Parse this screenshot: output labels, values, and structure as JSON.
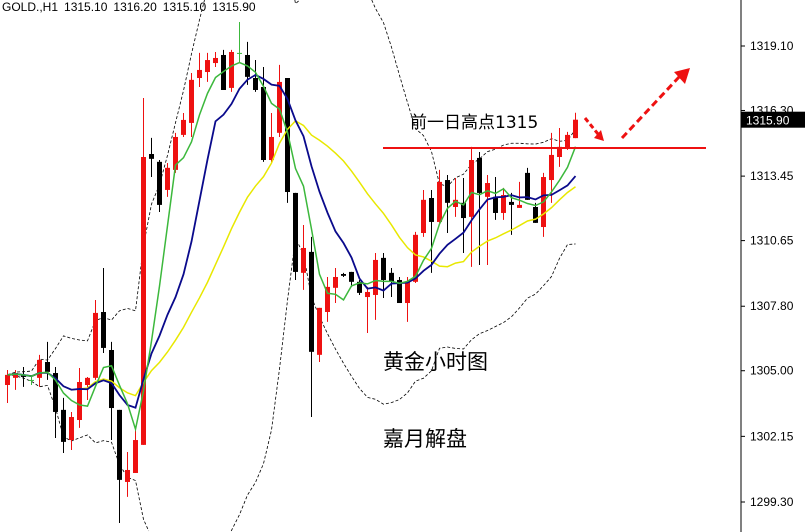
{
  "header": {
    "symbol": "GOLD.,H1",
    "open": "1315.10",
    "high": "1316.20",
    "low": "1315.10",
    "close": "1315.90"
  },
  "annotations": {
    "resistance_label": "前一日高点1315",
    "resistance_price": 1314.67,
    "title1": "黄金小时图",
    "title2": "嘉月解盘"
  },
  "colors": {
    "up": "#ee1111",
    "down": "#000000",
    "ma_fast": "#3cb83c",
    "ma_mid": "#0a0a8c",
    "ma_slow": "#e8e800",
    "bands": "#000000",
    "annotation": "#ee1111"
  },
  "chart_data": {
    "type": "candlestick",
    "title": "GOLD.,H1",
    "ylim": [
      1298.5,
      1321.0
    ],
    "yticks": [
      "1319.10",
      "1316.30",
      "1313.45",
      "1310.65",
      "1307.80",
      "1305.00",
      "1302.15",
      "1299.30"
    ],
    "current_price": "1315.90",
    "indicators": {
      "ma_fast_period": 5,
      "ma_mid_period": 10,
      "ma_slow_period": 20,
      "bands_period": 20,
      "bands_dev": 2
    },
    "ohlc": [
      [
        1304.38,
        1305.03,
        1303.6,
        1304.82
      ],
      [
        1304.69,
        1305.03,
        1304.17,
        1304.9
      ],
      [
        1304.82,
        1305.16,
        1304.3,
        1304.73
      ],
      [
        1304.6,
        1304.73,
        1304.38,
        1304.6
      ],
      [
        1304.69,
        1305.69,
        1304.3,
        1305.47
      ],
      [
        1305.38,
        1306.25,
        1304.6,
        1304.95
      ],
      [
        1304.9,
        1305.16,
        1302.08,
        1303.21
      ],
      [
        1303.3,
        1303.82,
        1301.43,
        1301.91
      ],
      [
        1301.99,
        1303.21,
        1301.56,
        1302.99
      ],
      [
        1302.86,
        1305.12,
        1302.52,
        1304.51
      ],
      [
        1304.38,
        1304.73,
        1303.73,
        1304.69
      ],
      [
        1304.69,
        1308.07,
        1304.6,
        1307.51
      ],
      [
        1307.55,
        1309.46,
        1305.77,
        1305.99
      ],
      [
        1305.9,
        1306.25,
        1301.99,
        1303.38
      ],
      [
        1303.3,
        1303.3,
        1298.39,
        1300.26
      ],
      [
        1300.17,
        1301.47,
        1299.52,
        1300.69
      ],
      [
        1300.56,
        1302.43,
        1300.56,
        1301.99
      ],
      [
        1301.78,
        1316.84,
        1301.78,
        1314.28
      ],
      [
        1314.41,
        1315.11,
        1313.41,
        1314.2
      ],
      [
        1314.07,
        1314.15,
        1311.89,
        1312.2
      ],
      [
        1312.85,
        1314.02,
        1312.55,
        1313.81
      ],
      [
        1313.72,
        1315.33,
        1313.59,
        1315.15
      ],
      [
        1315.24,
        1316.19,
        1315.15,
        1315.89
      ],
      [
        1315.76,
        1317.93,
        1315.15,
        1317.63
      ],
      [
        1317.71,
        1318.8,
        1317.32,
        1318.06
      ],
      [
        1317.97,
        1318.8,
        1317.54,
        1318.49
      ],
      [
        1318.36,
        1318.84,
        1318.19,
        1318.58
      ],
      [
        1318.71,
        1318.93,
        1317.19,
        1317.19
      ],
      [
        1317.28,
        1318.93,
        1317.11,
        1318.84
      ],
      [
        1318.8,
        1320.14,
        1318.36,
        1318.8
      ],
      [
        1318.71,
        1319.28,
        1317.41,
        1317.76
      ],
      [
        1317.71,
        1318.49,
        1317.11,
        1317.19
      ],
      [
        1317.32,
        1318.19,
        1314.07,
        1314.15
      ],
      [
        1314.15,
        1316.19,
        1314.02,
        1315.15
      ],
      [
        1315.33,
        1318.28,
        1315.15,
        1317.54
      ],
      [
        1317.71,
        1317.71,
        1312.29,
        1312.76
      ],
      [
        1312.72,
        1312.72,
        1308.94,
        1309.29
      ],
      [
        1309.25,
        1311.33,
        1308.51,
        1310.33
      ],
      [
        1310.16,
        1310.81,
        1302.99,
        1305.82
      ],
      [
        1305.69,
        1307.73,
        1305.38,
        1307.73
      ],
      [
        1307.55,
        1309.07,
        1307.12,
        1308.64
      ],
      [
        1308.6,
        1309.46,
        1307.94,
        1309.07
      ],
      [
        1309.2,
        1309.25,
        1309.07,
        1309.12
      ],
      [
        1309.29,
        1309.29,
        1308.64,
        1308.86
      ],
      [
        1308.86,
        1308.94,
        1308.29,
        1308.38
      ],
      [
        1308.2,
        1308.64,
        1306.64,
        1308.42
      ],
      [
        1308.29,
        1310.11,
        1307.21,
        1309.81
      ],
      [
        1309.9,
        1310.11,
        1308.16,
        1308.94
      ],
      [
        1309.25,
        1309.46,
        1308.2,
        1308.86
      ],
      [
        1308.94,
        1309.07,
        1307.94,
        1307.94
      ],
      [
        1307.94,
        1309.07,
        1307.12,
        1308.86
      ],
      [
        1308.86,
        1311.03,
        1308.81,
        1310.9
      ],
      [
        1310.98,
        1312.85,
        1310.81,
        1312.42
      ],
      [
        1312.5,
        1312.85,
        1309.25,
        1311.46
      ],
      [
        1311.46,
        1313.72,
        1311.42,
        1313.2
      ],
      [
        1313.28,
        1313.5,
        1310.98,
        1312.29
      ],
      [
        1312.11,
        1313.37,
        1311.68,
        1312.42
      ],
      [
        1312.29,
        1313.37,
        1310.11,
        1311.63
      ],
      [
        1311.68,
        1314.72,
        1309.51,
        1314.15
      ],
      [
        1314.24,
        1314.5,
        1309.59,
        1312.72
      ],
      [
        1312.55,
        1313.5,
        1309.59,
        1313.15
      ],
      [
        1312.55,
        1313.41,
        1311.55,
        1311.85
      ],
      [
        1311.85,
        1312.94,
        1311.55,
        1312.63
      ],
      [
        1312.33,
        1312.72,
        1310.9,
        1312.2
      ],
      [
        1312.07,
        1313.2,
        1312.07,
        1312.2
      ],
      [
        1313.59,
        1313.81,
        1312.42,
        1312.42
      ],
      [
        1312.11,
        1312.29,
        1311.42,
        1311.42
      ],
      [
        1311.24,
        1313.59,
        1310.81,
        1313.41
      ],
      [
        1313.28,
        1315.33,
        1312.29,
        1314.37
      ],
      [
        1314.28,
        1315.54,
        1313.85,
        1314.72
      ],
      [
        1314.67,
        1315.37,
        1314.59,
        1315.24
      ],
      [
        1315.1,
        1316.2,
        1315.1,
        1315.9
      ]
    ]
  }
}
